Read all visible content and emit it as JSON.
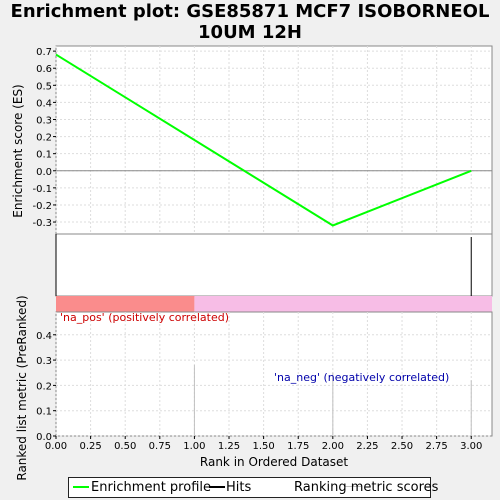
{
  "title": {
    "line1": "Enrichment plot: GSE85871 MCF7 ISOBORNEOL",
    "line2": "10UM 12H"
  },
  "colors": {
    "enrichment_line": "#00ff00",
    "hits": "#000000",
    "ranking": "#c0c0c0",
    "pos_bar": "#fa8c8c",
    "neg_bar": "#f7bde6",
    "pos_label": "#cc0000",
    "neg_label": "#0000aa"
  },
  "chart_data": [
    {
      "type": "line",
      "name": "enrichment-score",
      "ylabel": "Enrichment score (ES)",
      "xlim": [
        0,
        3.15
      ],
      "ylim": [
        -0.37,
        0.73
      ],
      "yticks": [
        "0.7",
        "0.6",
        "0.5",
        "0.4",
        "0.3",
        "0.2",
        "0.1",
        "0.0",
        "-0.1",
        "-0.2",
        "-0.3"
      ],
      "grid": true,
      "series": [
        {
          "x": [
            0,
            2,
            3
          ],
          "y": [
            0.68,
            -0.32,
            0.0
          ]
        }
      ]
    },
    {
      "type": "bar",
      "name": "hits",
      "hits_x": [
        3
      ]
    },
    {
      "type": "bar",
      "name": "ranked-list-metric",
      "xlabel": "Rank in Ordered Dataset",
      "ylabel": "Ranked list metric (PreRanked)",
      "xlim": [
        0,
        3.15
      ],
      "ylim": [
        0,
        0.49
      ],
      "xticks": [
        "0.00",
        "0.25",
        "0.50",
        "0.75",
        "1.00",
        "1.25",
        "1.50",
        "1.75",
        "2.00",
        "2.25",
        "2.50",
        "2.75",
        "3.00"
      ],
      "yticks": [
        "0.4",
        "0.3",
        "0.2",
        "0.1",
        "0.0"
      ],
      "grid": true,
      "x": [
        1,
        2,
        3
      ],
      "values": [
        0.28,
        0.25,
        0.22
      ],
      "pos_label": "'na_pos' (positively correlated)",
      "neg_label": "'na_neg' (negatively correlated)",
      "split_x": 1.0
    }
  ],
  "legend": {
    "enrichment": "Enrichment profile",
    "hits": "Hits",
    "ranking": "Ranking metric scores"
  }
}
